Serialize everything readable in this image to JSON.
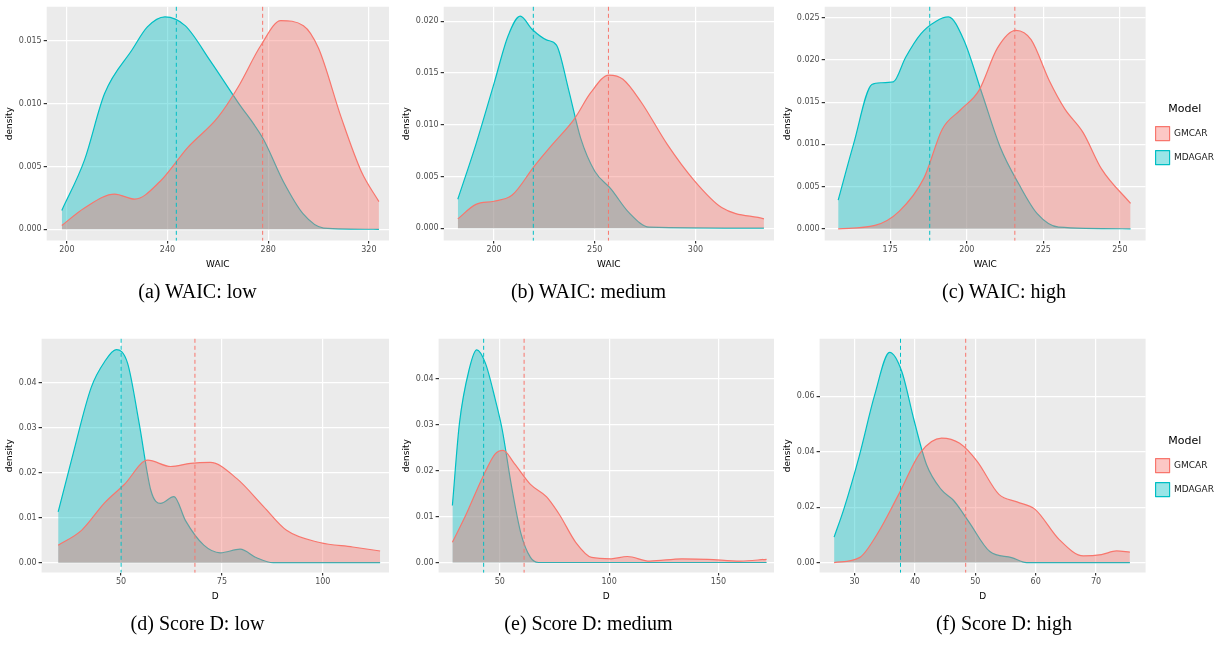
{
  "chart_data": [
    {
      "type": "area",
      "title": "(a) WAIC: low",
      "xlabel": "WAIC",
      "ylabel": "density",
      "xlim": [
        192,
        328
      ],
      "ylim": [
        -0.0009,
        0.0177
      ],
      "xticks": [
        200,
        240,
        280,
        320
      ],
      "yticks": [
        {
          "value": 0,
          "label": "0.000"
        },
        {
          "value": 0.005,
          "label": "0.005"
        },
        {
          "value": 0.01,
          "label": "0.010"
        },
        {
          "value": 0.015,
          "label": "0.015"
        }
      ],
      "grid": true,
      "legend": false,
      "series": [
        {
          "color": "#f8766d",
          "x": [
            198,
            207,
            219,
            227,
            237,
            248,
            260,
            268,
            277,
            285,
            294,
            300,
            309,
            317,
            324
          ],
          "values": [
            0.0003,
            0.0017,
            0.0028,
            0.0024,
            0.0038,
            0.0065,
            0.0089,
            0.0113,
            0.0146,
            0.0166,
            0.0162,
            0.0144,
            0.0089,
            0.0046,
            0.0022
          ]
        },
        {
          "color": "#00bfc4",
          "x": [
            198,
            207,
            215,
            226,
            232,
            239,
            247,
            257,
            268,
            278,
            286,
            294,
            302,
            324
          ],
          "values": [
            0.0015,
            0.0055,
            0.0108,
            0.0143,
            0.0161,
            0.0169,
            0.0162,
            0.0134,
            0.0101,
            0.0072,
            0.0038,
            0.0012,
            0.0001,
            0
          ]
        }
      ],
      "ref_lines": [
        {
          "axis": "x",
          "value": 277.8,
          "color": "#f8766d",
          "line_style": "dashed"
        },
        {
          "axis": "x",
          "value": 243.5,
          "color": "#00bfc4",
          "line_style": "dashed"
        }
      ]
    },
    {
      "type": "area",
      "title": "(b) WAIC: medium",
      "xlabel": "WAIC",
      "ylabel": "density",
      "xlim": [
        175,
        339
      ],
      "ylim": [
        -0.0012,
        0.0214
      ],
      "xticks": [
        200,
        250,
        300
      ],
      "yticks": [
        {
          "value": 0,
          "label": "0.000"
        },
        {
          "value": 0.005,
          "label": "0.005"
        },
        {
          "value": 0.01,
          "label": "0.010"
        },
        {
          "value": 0.015,
          "label": "0.015"
        },
        {
          "value": 0.02,
          "label": "0.020"
        }
      ],
      "grid": true,
      "legend": false,
      "series": [
        {
          "color": "#f8766d",
          "x": [
            182,
            191,
            200,
            209,
            220,
            229,
            240,
            248,
            257,
            264,
            273,
            286,
            299,
            313,
            334
          ],
          "values": [
            0.0009,
            0.0023,
            0.0026,
            0.0032,
            0.006,
            0.0081,
            0.0106,
            0.0131,
            0.0148,
            0.0144,
            0.0122,
            0.0081,
            0.0047,
            0.002,
            0.0009
          ]
        },
        {
          "color": "#00bfc4",
          "x": [
            182,
            191,
            200,
            207,
            213,
            219,
            226,
            231,
            237,
            243,
            250,
            258,
            267,
            277,
            334
          ],
          "values": [
            0.0028,
            0.0081,
            0.014,
            0.0186,
            0.0205,
            0.0192,
            0.0182,
            0.0177,
            0.0134,
            0.0087,
            0.0055,
            0.0038,
            0.0015,
            0.0001,
            0
          ]
        }
      ],
      "ref_lines": [
        {
          "axis": "x",
          "value": 256.8,
          "color": "#f8766d",
          "line_style": "dashed"
        },
        {
          "axis": "x",
          "value": 219.5,
          "color": "#00bfc4",
          "line_style": "dashed"
        }
      ]
    },
    {
      "type": "area",
      "title": "(c) WAIC: high",
      "xlabel": "WAIC",
      "ylabel": "density",
      "xlim": [
        153.6,
        258.4
      ],
      "ylim": [
        -0.0014,
        0.0263
      ],
      "xticks": [
        175,
        200,
        225,
        250
      ],
      "yticks": [
        {
          "value": 0,
          "label": "0.000"
        },
        {
          "value": 0.005,
          "label": "0.005"
        },
        {
          "value": 0.01,
          "label": "0.010"
        },
        {
          "value": 0.015,
          "label": "0.015"
        },
        {
          "value": 0.02,
          "label": "0.020"
        },
        {
          "value": 0.025,
          "label": "0.025"
        }
      ],
      "grid": true,
      "legend": "right",
      "legend_title": "Model",
      "series": [
        {
          "name": "GMCAR",
          "color": "#f8766d",
          "x": [
            158,
            170,
            178,
            186,
            192,
            198,
            204,
            210,
            216,
            221,
            227,
            232,
            238,
            244,
            253.5
          ],
          "values": [
            0,
            0.0004,
            0.0021,
            0.006,
            0.0118,
            0.0141,
            0.0164,
            0.0214,
            0.0235,
            0.0224,
            0.0175,
            0.0142,
            0.0114,
            0.0071,
            0.003
          ]
        },
        {
          "name": "MDAGAR",
          "color": "#00bfc4",
          "x": [
            158,
            163,
            169,
            172,
            176,
            180,
            185,
            190,
            194,
            199,
            205,
            211,
            217,
            223,
            230,
            253.5
          ],
          "values": [
            0.0034,
            0.01,
            0.0171,
            0.0173,
            0.0174,
            0.0203,
            0.0231,
            0.0246,
            0.0251,
            0.0224,
            0.016,
            0.0096,
            0.0053,
            0.0018,
            0.0002,
            0
          ]
        }
      ],
      "ref_lines": [
        {
          "axis": "x",
          "value": 215.7,
          "color": "#f8766d",
          "line_style": "dashed"
        },
        {
          "axis": "x",
          "value": 187.9,
          "color": "#00bfc4",
          "line_style": "dashed"
        }
      ]
    },
    {
      "type": "area",
      "title": "(d) Score D: low",
      "xlabel": "D",
      "ylabel": "density",
      "xlim": [
        30.3,
        116.4
      ],
      "ylim": [
        -0.0022,
        0.0498
      ],
      "xticks": [
        50,
        75,
        100
      ],
      "yticks": [
        {
          "value": 0,
          "label": "0.00"
        },
        {
          "value": 0.01,
          "label": "0.01"
        },
        {
          "value": 0.02,
          "label": "0.02"
        },
        {
          "value": 0.03,
          "label": "0.03"
        },
        {
          "value": 0.04,
          "label": "0.04"
        }
      ],
      "grid": true,
      "legend": false,
      "series": [
        {
          "color": "#f8766d",
          "x": [
            34.4,
            40.2,
            45.9,
            50.8,
            56.6,
            62.3,
            67.2,
            72.1,
            78.7,
            85.2,
            91,
            99.2,
            107.4,
            114.2
          ],
          "values": [
            0.0039,
            0.0072,
            0.0133,
            0.0174,
            0.0228,
            0.0214,
            0.0221,
            0.0223,
            0.0187,
            0.0126,
            0.0072,
            0.0045,
            0.0035,
            0.0026
          ]
        },
        {
          "color": "#00bfc4",
          "x": [
            34.4,
            37.7,
            42.6,
            45.9,
            48.8,
            51.6,
            54.5,
            57.4,
            59.8,
            63.1,
            66,
            70.5,
            74.6,
            79.5,
            83.6,
            87.7,
            114.2
          ],
          "values": [
            0.0113,
            0.0228,
            0.039,
            0.0447,
            0.0474,
            0.0444,
            0.0309,
            0.016,
            0.0132,
            0.0147,
            0.0093,
            0.0039,
            0.0022,
            0.003,
            0.0011,
            0,
            0
          ]
        }
      ],
      "ref_lines": [
        {
          "axis": "x",
          "value": 68.3,
          "color": "#f8766d",
          "line_style": "dashed"
        },
        {
          "axis": "x",
          "value": 50,
          "color": "#00bfc4",
          "line_style": "dashed"
        }
      ]
    },
    {
      "type": "area",
      "title": "(e) Score D: medium",
      "xlabel": "D",
      "ylabel": "density",
      "xlim": [
        22,
        175.4
      ],
      "ylim": [
        -0.0022,
        0.0487
      ],
      "xticks": [
        50,
        100,
        150
      ],
      "yticks": [
        {
          "value": 0,
          "label": "0.00"
        },
        {
          "value": 0.01,
          "label": "0.01"
        },
        {
          "value": 0.02,
          "label": "0.02"
        },
        {
          "value": 0.03,
          "label": "0.03"
        },
        {
          "value": 0.04,
          "label": "0.04"
        }
      ],
      "grid": true,
      "legend": false,
      "series": [
        {
          "color": "#f8766d",
          "x": [
            28.3,
            34.5,
            41.9,
            47.8,
            51.5,
            56.6,
            64,
            71.4,
            77.3,
            84.7,
            92,
            100.9,
            108.3,
            118.6,
            133.3,
            145.1,
            159.9,
            172
          ],
          "values": [
            0.0044,
            0.0104,
            0.0183,
            0.0236,
            0.0244,
            0.0216,
            0.017,
            0.0143,
            0.0104,
            0.0044,
            0.0011,
            0.0008,
            0.0013,
            0.0003,
            0.0008,
            0.0007,
            0.0003,
            0.0007
          ]
        },
        {
          "color": "#00bfc4",
          "x": [
            28.3,
            31.5,
            36,
            39.4,
            43.4,
            47.9,
            51.1,
            55.2,
            59.6,
            64,
            67.7,
            172
          ],
          "values": [
            0.0124,
            0.0302,
            0.0421,
            0.0463,
            0.0434,
            0.0355,
            0.0289,
            0.017,
            0.0064,
            0.0011,
            0,
            0
          ]
        }
      ],
      "ref_lines": [
        {
          "axis": "x",
          "value": 61.1,
          "color": "#f8766d",
          "line_style": "dashed"
        },
        {
          "axis": "x",
          "value": 42.6,
          "color": "#00bfc4",
          "line_style": "dashed"
        }
      ]
    },
    {
      "type": "area",
      "title": "(f) Score D: high",
      "xlabel": "D",
      "ylabel": "density",
      "xlim": [
        24.2,
        78.2
      ],
      "ylim": [
        -0.0036,
        0.0807
      ],
      "xticks": [
        30,
        40,
        50,
        60,
        70
      ],
      "yticks": [
        {
          "value": 0,
          "label": "0.00"
        },
        {
          "value": 0.02,
          "label": "0.02"
        },
        {
          "value": 0.04,
          "label": "0.04"
        },
        {
          "value": 0.06,
          "label": "0.06"
        }
      ],
      "grid": true,
      "legend": "right",
      "legend_title": "Model",
      "series": [
        {
          "name": "GMCAR",
          "color": "#f8766d",
          "x": [
            26.6,
            30.8,
            33.8,
            37.3,
            40.9,
            44.4,
            47.4,
            50.3,
            53.9,
            56.9,
            59.9,
            63.9,
            67.9,
            70.9,
            73.4,
            75.6
          ],
          "values": [
            0,
            0.0018,
            0.0105,
            0.0246,
            0.0397,
            0.0449,
            0.043,
            0.0365,
            0.0246,
            0.0219,
            0.0192,
            0.0083,
            0.0024,
            0.0029,
            0.0042,
            0.0038
          ]
        },
        {
          "name": "MDAGAR",
          "color": "#00bfc4",
          "x": [
            26.6,
            28.2,
            30.8,
            33.3,
            35.8,
            37.8,
            39.8,
            41.9,
            44.4,
            46.4,
            48.9,
            52.4,
            56,
            58.5,
            75.6
          ],
          "values": [
            0.0092,
            0.0192,
            0.0387,
            0.0603,
            0.0758,
            0.069,
            0.0517,
            0.0354,
            0.0262,
            0.0224,
            0.0148,
            0.004,
            0.0018,
            0,
            0
          ]
        }
      ],
      "ref_lines": [
        {
          "axis": "x",
          "value": 48.4,
          "color": "#f8766d",
          "line_style": "dashed"
        },
        {
          "axis": "x",
          "value": 37.6,
          "color": "#00bfc4",
          "line_style": "dashed"
        }
      ]
    }
  ]
}
